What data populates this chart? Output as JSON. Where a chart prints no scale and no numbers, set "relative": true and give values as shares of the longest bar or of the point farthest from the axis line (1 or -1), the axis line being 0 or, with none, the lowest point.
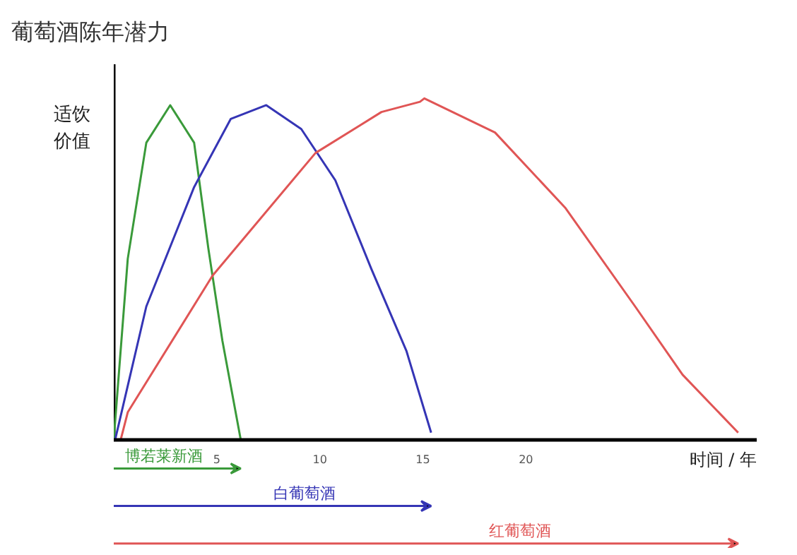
{
  "chart_data": {
    "type": "line",
    "title": "葡萄酒陈年潜力",
    "xlabel": "时间 / 年",
    "ylabel": "适饮价值",
    "relative": true,
    "xlim": [
      0,
      31.2
    ],
    "xticks": [
      5,
      10,
      15,
      20
    ],
    "grid": false,
    "series": [
      {
        "name": "博若莱新酒",
        "color": "#3a9a3a",
        "x": [
          0,
          0.68,
          1.58,
          2.74,
          3.9,
          4.59,
          5.27,
          6.16
        ],
        "values": [
          0,
          0.53,
          0.87,
          0.98,
          0.87,
          0.56,
          0.29,
          0
        ]
      },
      {
        "name": "白葡萄酒",
        "color": "#3535b5",
        "x": [
          0.07,
          1.58,
          3.9,
          5.68,
          7.4,
          9.1,
          10.75,
          12.5,
          14.2,
          15.4
        ],
        "values": [
          0,
          0.39,
          0.74,
          0.94,
          0.98,
          0.91,
          0.76,
          0.5,
          0.26,
          0.02
        ]
      },
      {
        "name": "红葡萄酒",
        "color": "#e05555",
        "x": [
          0.34,
          0.68,
          4.79,
          9.79,
          12.99,
          14.86,
          15.07,
          18.5,
          21.9,
          25.3,
          27.6,
          30.3
        ],
        "values": [
          0,
          0.08,
          0.48,
          0.84,
          0.96,
          0.99,
          1.0,
          0.9,
          0.68,
          0.39,
          0.19,
          0.02
        ]
      }
    ]
  }
}
